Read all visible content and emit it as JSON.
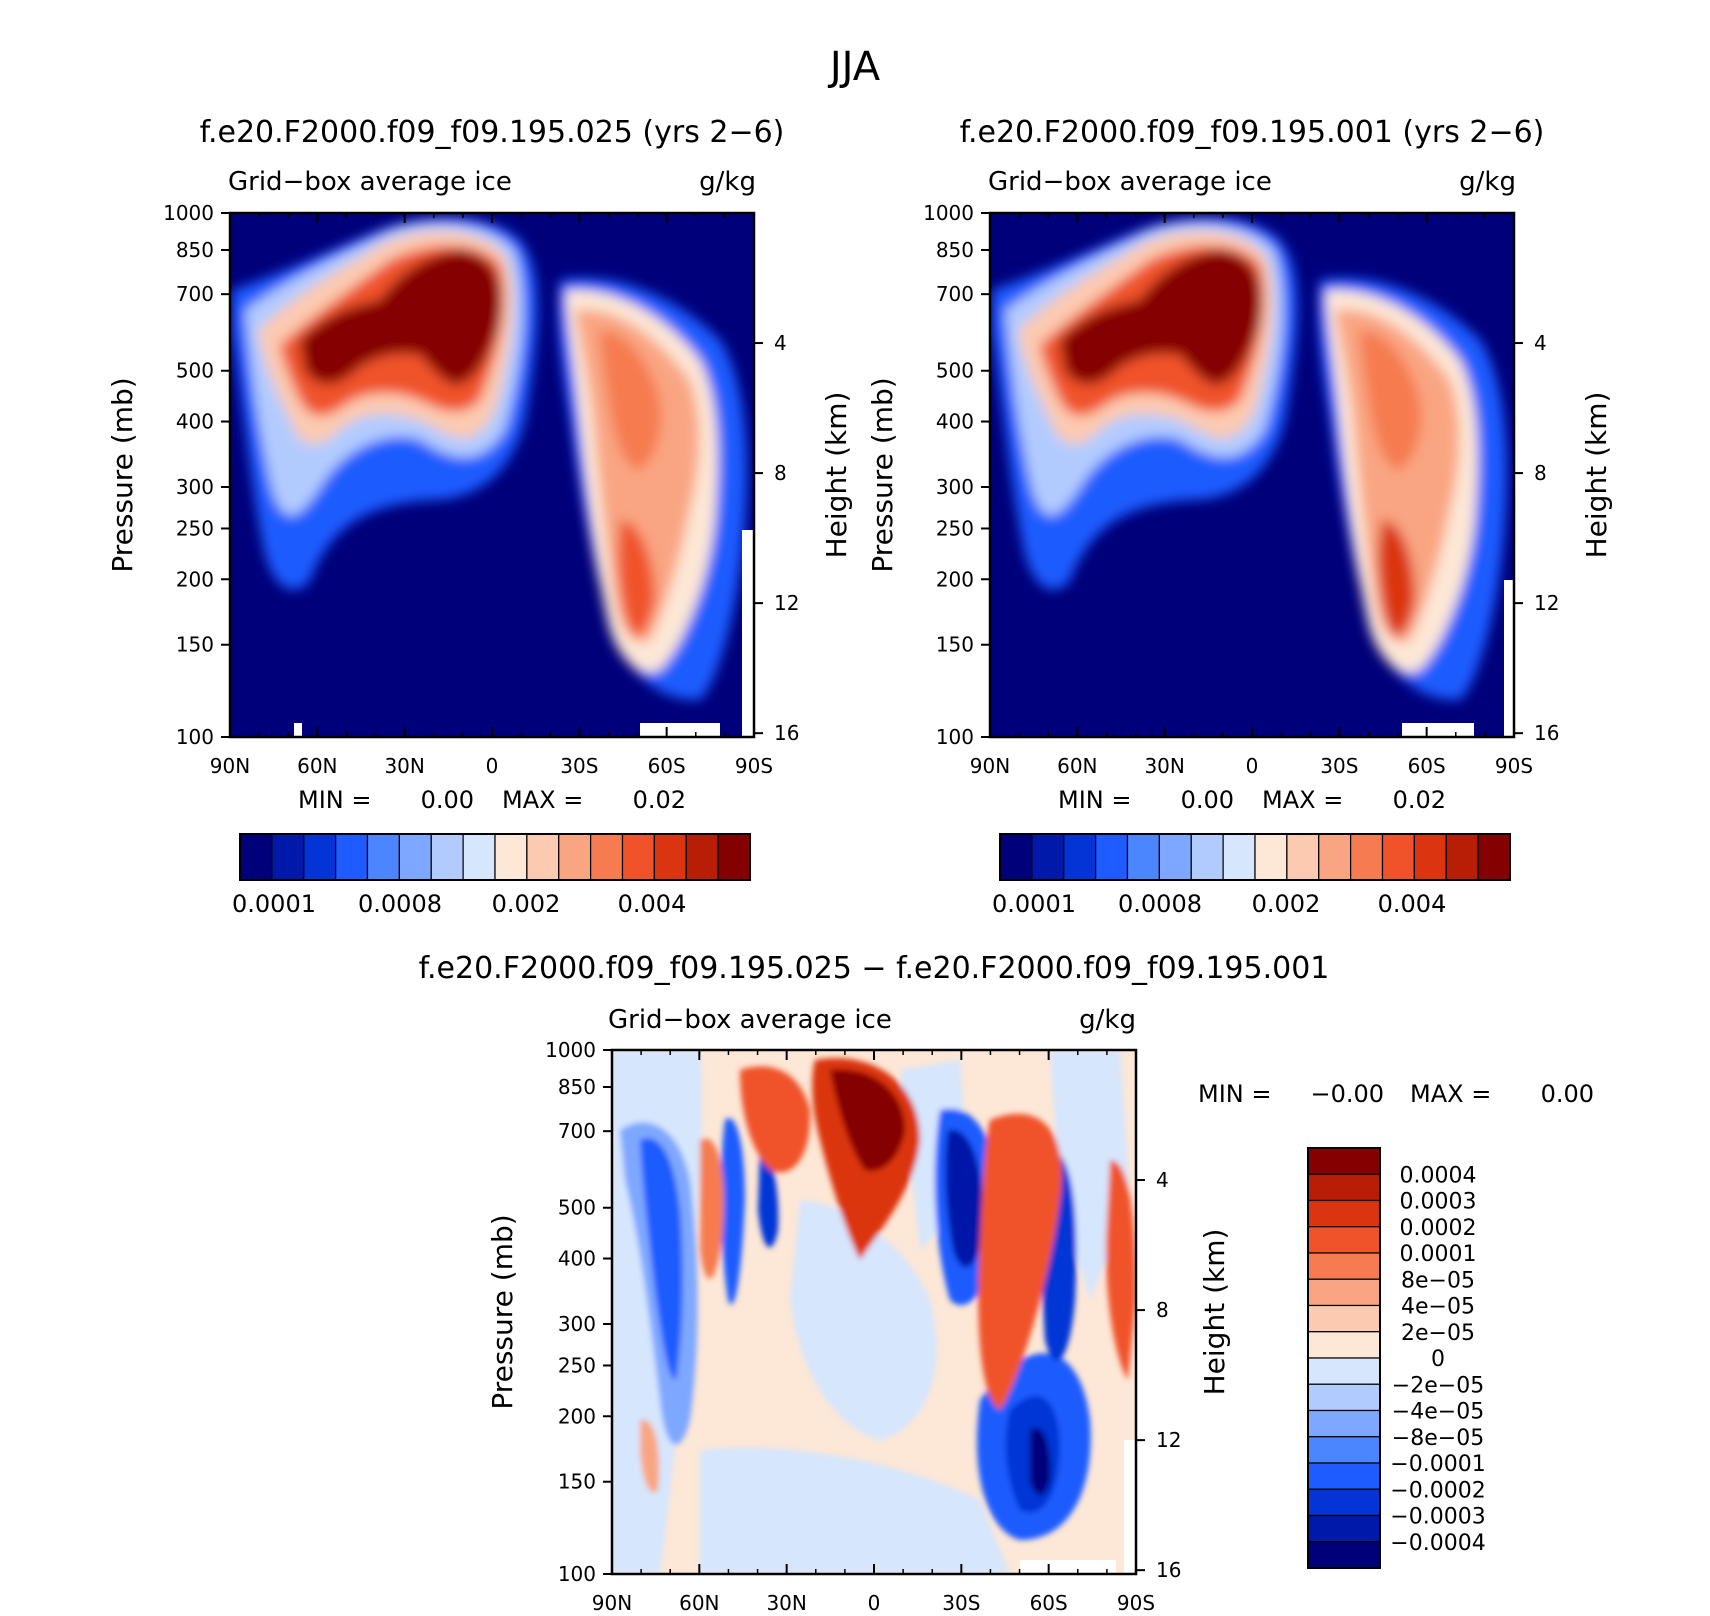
{
  "figure_title": "JJA",
  "colors": {
    "abs_levels": [
      "#00007a",
      "#0019a8",
      "#0434d6",
      "#1e5cff",
      "#4b86ff",
      "#7ea7ff",
      "#b2cbff",
      "#d6e6fd",
      "#fde7d6",
      "#fccab0",
      "#f9a582",
      "#f67b50",
      "#f0532a",
      "#db3410",
      "#b81e06",
      "#850000"
    ],
    "diff_levels": [
      "#00007a",
      "#0019a8",
      "#0434d6",
      "#1e5cff",
      "#4b86ff",
      "#7ea7ff",
      "#b2cbff",
      "#d6e6fd",
      "#fde7d6",
      "#fccab0",
      "#f9a582",
      "#f67b50",
      "#f0532a",
      "#db3410",
      "#b81e06",
      "#850000"
    ]
  },
  "panels": [
    {
      "title": "f.e20.F2000.f09_f09.195.025 (yrs 2−6)",
      "left_label": "Grid−box average ice",
      "right_label": "g/kg",
      "ylabel": "Pressure (mb)",
      "ylabel_right": "Height (km)",
      "minmax": {
        "min_label": "MIN =",
        "min_value": "0.00",
        "max_label": "MAX =",
        "max_value": "0.02"
      },
      "colorbar_labels": [
        "0.0001",
        "0.0008",
        "0.002",
        "0.004"
      ]
    },
    {
      "title": "f.e20.F2000.f09_f09.195.001 (yrs 2−6)",
      "left_label": "Grid−box average ice",
      "right_label": "g/kg",
      "ylabel": "Pressure (mb)",
      "ylabel_right": "Height (km)",
      "minmax": {
        "min_label": "MIN =",
        "min_value": "0.00",
        "max_label": "MAX =",
        "max_value": "0.02"
      },
      "colorbar_labels": [
        "0.0001",
        "0.0008",
        "0.002",
        "0.004"
      ]
    },
    {
      "title": "f.e20.F2000.f09_f09.195.025 − f.e20.F2000.f09_f09.195.001",
      "left_label": "Grid−box average ice",
      "right_label": "g/kg",
      "ylabel": "Pressure (mb)",
      "ylabel_right": "Height (km)",
      "minmax": {
        "min_label": "MIN =",
        "min_value": "−0.00",
        "max_label": "MAX =",
        "max_value": "0.00"
      },
      "colorbar_labels": [
        "0.0004",
        "0.0003",
        "0.0002",
        "0.0001",
        "8e−05",
        "4e−05",
        "2e−05",
        "0",
        "−2e−05",
        "−4e−05",
        "−8e−05",
        "−0.0001",
        "−0.0002",
        "−0.0003",
        "−0.0004"
      ]
    }
  ],
  "chart_data": [
    {
      "type": "heatmap",
      "title": "f.e20.F2000.f09_f09.195.025 (yrs 2−6)",
      "ylabel": "Pressure (mb)",
      "ylabel_right": "Height (km)",
      "x_ticks": [
        "90N",
        "60N",
        "30N",
        "0",
        "30S",
        "60S",
        "90S"
      ],
      "y_ticks": [
        100,
        150,
        200,
        250,
        300,
        400,
        500,
        700,
        850,
        1000
      ],
      "y_right_ticks": [
        16,
        12,
        8,
        4
      ],
      "ylim": [
        1000,
        100
      ],
      "y_scale": "log",
      "legend": "bottom"
    },
    {
      "type": "heatmap",
      "title": "f.e20.F2000.f09_f09.195.001 (yrs 2−6)",
      "ylabel": "Pressure (mb)",
      "ylabel_right": "Height (km)",
      "x_ticks": [
        "90N",
        "60N",
        "30N",
        "0",
        "30S",
        "60S",
        "90S"
      ],
      "y_ticks": [
        100,
        150,
        200,
        250,
        300,
        400,
        500,
        700,
        850,
        1000
      ],
      "y_right_ticks": [
        16,
        12,
        8,
        4
      ],
      "ylim": [
        1000,
        100
      ],
      "y_scale": "log",
      "legend": "bottom"
    },
    {
      "type": "heatmap",
      "title": "f.e20.F2000.f09_f09.195.025 − f.e20.F2000.f09_f09.195.001",
      "ylabel": "Pressure (mb)",
      "ylabel_right": "Height (km)",
      "x_ticks": [
        "90N",
        "60N",
        "30N",
        "0",
        "30S",
        "60S",
        "90S"
      ],
      "y_ticks": [
        100,
        150,
        200,
        250,
        300,
        400,
        500,
        700,
        850,
        1000
      ],
      "y_right_ticks": [
        16,
        12,
        8,
        4
      ],
      "ylim": [
        1000,
        100
      ],
      "y_scale": "log",
      "legend": "right"
    }
  ]
}
